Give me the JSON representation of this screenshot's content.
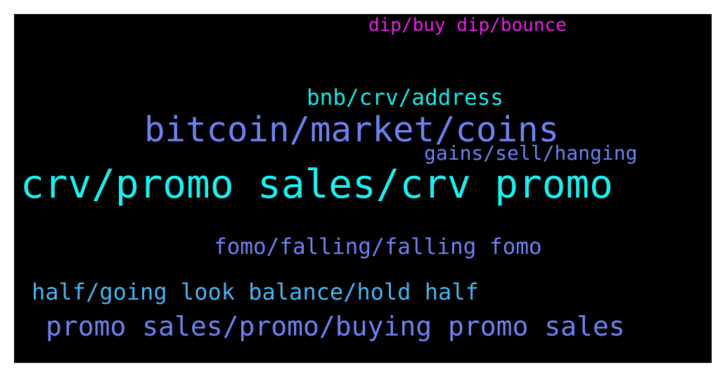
{
  "background": "#000000",
  "words": [
    {
      "text": "dip/buy dip/bounce",
      "color": "#e81ee8"
    },
    {
      "text": "bnb/crv/address",
      "color": "#1ee6e6"
    },
    {
      "text": "bitcoin/market/coins",
      "color": "#6e82f0"
    },
    {
      "text": "gains/sell/hanging",
      "color": "#6e82f0"
    },
    {
      "text": "crv/promo sales/crv promo",
      "color": "#1ef0f0"
    },
    {
      "text": "fomo/falling/falling fomo",
      "color": "#6e82f0"
    },
    {
      "text": "half/going look balance/hold half",
      "color": "#4ab4f0"
    },
    {
      "text": "promo sales/promo/buying promo sales",
      "color": "#6e82f0"
    }
  ]
}
